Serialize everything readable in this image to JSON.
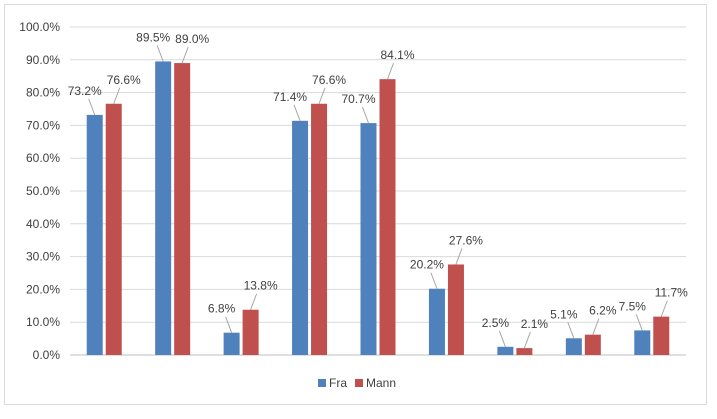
{
  "chart_data": {
    "type": "bar",
    "categories": [
      "",
      "",
      "",
      "",
      "",
      "",
      "",
      "",
      ""
    ],
    "series": [
      {
        "name": "Fra",
        "color": "#4f81bd",
        "values": [
          73.2,
          89.5,
          6.8,
          71.4,
          70.7,
          20.2,
          2.5,
          5.1,
          7.5
        ]
      },
      {
        "name": "Mann",
        "color": "#c0504d",
        "values": [
          76.6,
          89.0,
          13.8,
          76.6,
          84.1,
          27.6,
          2.1,
          6.2,
          11.7
        ]
      }
    ],
    "yticks": [
      "0.0%",
      "10.0%",
      "20.0%",
      "30.0%",
      "40.0%",
      "50.0%",
      "60.0%",
      "70.0%",
      "80.0%",
      "90.0%",
      "100.0%"
    ],
    "ylim": [
      0,
      100
    ],
    "value_suffix": "%",
    "grid": true,
    "legend": "bottom"
  },
  "legend": {
    "fra": "Fra",
    "mann": "Mann"
  }
}
